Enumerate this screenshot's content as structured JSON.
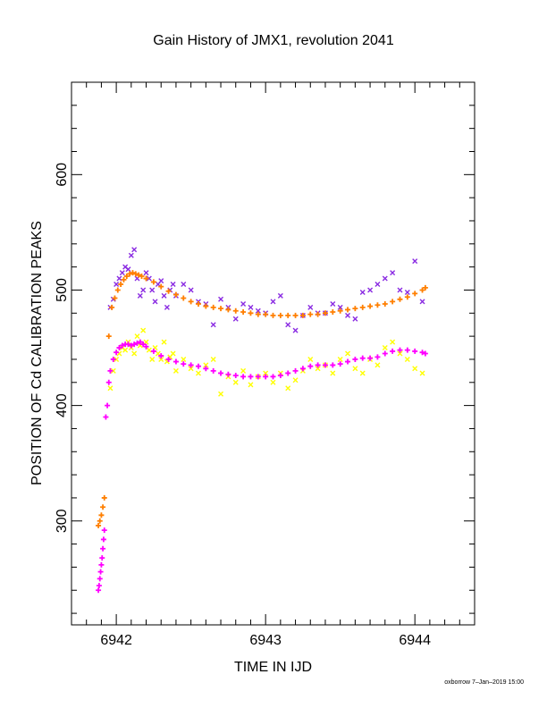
{
  "title": "Gain History of JMX1, revolution 2041",
  "footer": "oxborrow 7–Jan–2019 15:00",
  "chart_data": {
    "type": "scatter",
    "title": "Gain History of JMX1, revolution 2041",
    "xlabel": "TIME IN IJD",
    "ylabel": "POSITION OF Cd CALIBRATION PEAKS",
    "xlim": [
      6941.7,
      6944.4
    ],
    "ylim": [
      210,
      680
    ],
    "xticks": [
      6942,
      6943,
      6944
    ],
    "yticks": [
      300,
      400,
      500,
      600
    ],
    "grid": false,
    "series": [
      {
        "color": "#8a2be2",
        "marker": "x",
        "x": [
          6941.96,
          6941.98,
          6942.0,
          6942.02,
          6942.04,
          6942.06,
          6942.08,
          6942.1,
          6942.12,
          6942.14,
          6942.16,
          6942.18,
          6942.2,
          6942.22,
          6942.24,
          6942.26,
          6942.28,
          6942.3,
          6942.32,
          6942.34,
          6942.36,
          6942.38,
          6942.4,
          6942.45,
          6942.5,
          6942.55,
          6942.6,
          6942.65,
          6942.7,
          6942.75,
          6942.8,
          6942.85,
          6942.9,
          6942.95,
          6943.0,
          6943.05,
          6943.1,
          6943.15,
          6943.2,
          6943.25,
          6943.3,
          6943.35,
          6943.4,
          6943.45,
          6943.5,
          6943.55,
          6943.6,
          6943.65,
          6943.7,
          6943.75,
          6943.8,
          6943.85,
          6943.9,
          6943.95,
          6944.0,
          6944.05
        ],
        "y": [
          485,
          492,
          505,
          510,
          515,
          520,
          518,
          530,
          535,
          510,
          495,
          500,
          515,
          510,
          500,
          490,
          505,
          508,
          495,
          485,
          500,
          505,
          495,
          505,
          500,
          490,
          488,
          470,
          492,
          485,
          475,
          488,
          485,
          482,
          480,
          490,
          495,
          470,
          465,
          478,
          485,
          480,
          480,
          488,
          485,
          478,
          475,
          498,
          500,
          505,
          510,
          515,
          500,
          498,
          525,
          490
        ]
      },
      {
        "color": "#ffff00",
        "marker": "x",
        "x": [
          6941.96,
          6941.98,
          6942.0,
          6942.02,
          6942.04,
          6942.06,
          6942.08,
          6942.1,
          6942.12,
          6942.14,
          6942.16,
          6942.18,
          6942.2,
          6942.22,
          6942.24,
          6942.26,
          6942.28,
          6942.3,
          6942.32,
          6942.34,
          6942.36,
          6942.38,
          6942.4,
          6942.45,
          6942.5,
          6942.55,
          6942.6,
          6942.65,
          6942.7,
          6942.75,
          6942.8,
          6942.85,
          6942.9,
          6942.95,
          6943.0,
          6943.05,
          6943.1,
          6943.15,
          6943.2,
          6943.25,
          6943.3,
          6943.35,
          6943.4,
          6943.45,
          6943.5,
          6943.55,
          6943.6,
          6943.65,
          6943.7,
          6943.75,
          6943.8,
          6943.85,
          6943.9,
          6943.95,
          6944.0,
          6944.05
        ],
        "y": [
          415,
          430,
          440,
          445,
          450,
          448,
          455,
          450,
          445,
          460,
          452,
          465,
          455,
          448,
          440,
          450,
          445,
          440,
          455,
          438,
          442,
          445,
          430,
          440,
          432,
          428,
          435,
          440,
          410,
          425,
          420,
          430,
          418,
          425,
          428,
          420,
          428,
          415,
          422,
          430,
          440,
          432,
          435,
          428,
          440,
          445,
          432,
          428,
          440,
          435,
          450,
          455,
          445,
          440,
          432,
          428
        ]
      },
      {
        "color": "#ff7f00",
        "marker": "+",
        "x": [
          6941.88,
          6941.89,
          6941.9,
          6941.91,
          6941.92,
          6941.95,
          6941.97,
          6941.99,
          6942.01,
          6942.03,
          6942.05,
          6942.07,
          6942.09,
          6942.11,
          6942.13,
          6942.15,
          6942.17,
          6942.2,
          6942.25,
          6942.3,
          6942.35,
          6942.4,
          6942.45,
          6942.5,
          6942.55,
          6942.6,
          6942.65,
          6942.7,
          6942.75,
          6942.8,
          6942.85,
          6942.9,
          6942.95,
          6943.0,
          6943.05,
          6943.1,
          6943.15,
          6943.2,
          6943.25,
          6943.3,
          6943.35,
          6943.4,
          6943.45,
          6943.5,
          6943.55,
          6943.6,
          6943.65,
          6943.7,
          6943.75,
          6943.8,
          6943.85,
          6943.9,
          6943.95,
          6944.0,
          6944.05,
          6944.07
        ],
        "y": [
          296,
          300,
          305,
          312,
          320,
          460,
          485,
          493,
          500,
          505,
          509,
          512,
          514,
          515,
          514,
          513,
          512,
          510,
          507,
          503,
          499,
          496,
          493,
          490,
          488,
          486,
          485,
          484,
          483,
          482,
          481,
          480,
          479,
          479,
          478,
          478,
          478,
          478,
          478,
          479,
          479,
          480,
          481,
          482,
          483,
          484,
          485,
          486,
          487,
          488,
          490,
          492,
          494,
          497,
          500,
          502
        ]
      },
      {
        "color": "#ff00ff",
        "marker": "+",
        "x": [
          6941.88,
          6941.885,
          6941.89,
          6941.895,
          6941.9,
          6941.905,
          6941.91,
          6941.915,
          6941.92,
          6941.93,
          6941.94,
          6941.95,
          6941.96,
          6941.98,
          6942.0,
          6942.02,
          6942.04,
          6942.06,
          6942.08,
          6942.1,
          6942.12,
          6942.14,
          6942.16,
          6942.18,
          6942.2,
          6942.25,
          6942.3,
          6942.35,
          6942.4,
          6942.45,
          6942.5,
          6942.55,
          6942.6,
          6942.65,
          6942.7,
          6942.75,
          6942.8,
          6942.85,
          6942.9,
          6942.95,
          6943.0,
          6943.05,
          6943.1,
          6943.15,
          6943.2,
          6943.25,
          6943.3,
          6943.35,
          6943.4,
          6943.45,
          6943.5,
          6943.55,
          6943.6,
          6943.65,
          6943.7,
          6943.75,
          6943.8,
          6943.85,
          6943.9,
          6943.95,
          6944.0,
          6944.05,
          6944.07
        ],
        "y": [
          240,
          244,
          250,
          256,
          262,
          268,
          276,
          284,
          292,
          390,
          400,
          420,
          430,
          440,
          446,
          450,
          452,
          453,
          453,
          452,
          453,
          454,
          455,
          453,
          451,
          447,
          443,
          440,
          438,
          436,
          435,
          434,
          432,
          430,
          428,
          427,
          426,
          425,
          425,
          425,
          425,
          425,
          426,
          428,
          430,
          432,
          434,
          435,
          435,
          435,
          436,
          438,
          440,
          441,
          441,
          442,
          445,
          447,
          448,
          448,
          447,
          446,
          445
        ]
      }
    ]
  }
}
